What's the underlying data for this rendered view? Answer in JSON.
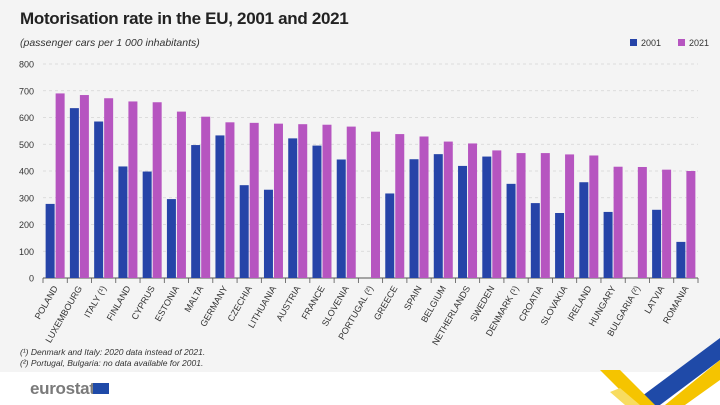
{
  "chart_data": {
    "type": "bar",
    "title": "Motorisation rate in the EU, 2001 and 2021",
    "subtitle": "(passenger cars per 1 000 inhabitants)",
    "categories": [
      "POLAND",
      "LUXEMBOURG",
      "ITALY (¹)",
      "FINLAND",
      "CYPRUS",
      "ESTONIA",
      "MALTA",
      "GERMANY",
      "CZECHIA",
      "LITHUANIA",
      "AUSTRIA",
      "FRANCE",
      "SLOVENIA",
      "PORTUGAL (²)",
      "GREECE",
      "SPAIN",
      "BELGIUM",
      "NETHERLANDS",
      "SWEDEN",
      "DENMARK (¹)",
      "CROATIA",
      "SLOVAKIA",
      "IRELAND",
      "HUNGARY",
      "BULGARIA (²)",
      "LATVIA",
      "ROMANIA"
    ],
    "series": [
      {
        "name": "2001",
        "color": "#2644a8",
        "values": [
          277,
          635,
          585,
          417,
          398,
          295,
          497,
          533,
          347,
          330,
          522,
          495,
          443,
          null,
          316,
          444,
          463,
          419,
          454,
          352,
          280,
          243,
          358,
          247,
          null,
          255,
          135
        ]
      },
      {
        "name": "2021",
        "color": "#b655c0",
        "values": [
          690,
          684,
          672,
          660,
          657,
          622,
          603,
          582,
          580,
          577,
          575,
          573,
          566,
          547,
          538,
          529,
          510,
          503,
          477,
          467,
          467,
          462,
          458,
          416,
          415,
          405,
          400
        ]
      }
    ],
    "ylim": [
      0,
      800
    ],
    "yticks": [
      "0",
      "100",
      "200",
      "300",
      "400",
      "500",
      "600",
      "700",
      "800"
    ],
    "grid": true,
    "legend_position": "top-right",
    "xlabel": "",
    "ylabel": ""
  },
  "footnotes": [
    "(¹) Denmark and Italy: 2020 data instead of 2021.",
    "(²) Portugal, Bulgaria: no data available for 2001."
  ],
  "logo": "eurostat"
}
